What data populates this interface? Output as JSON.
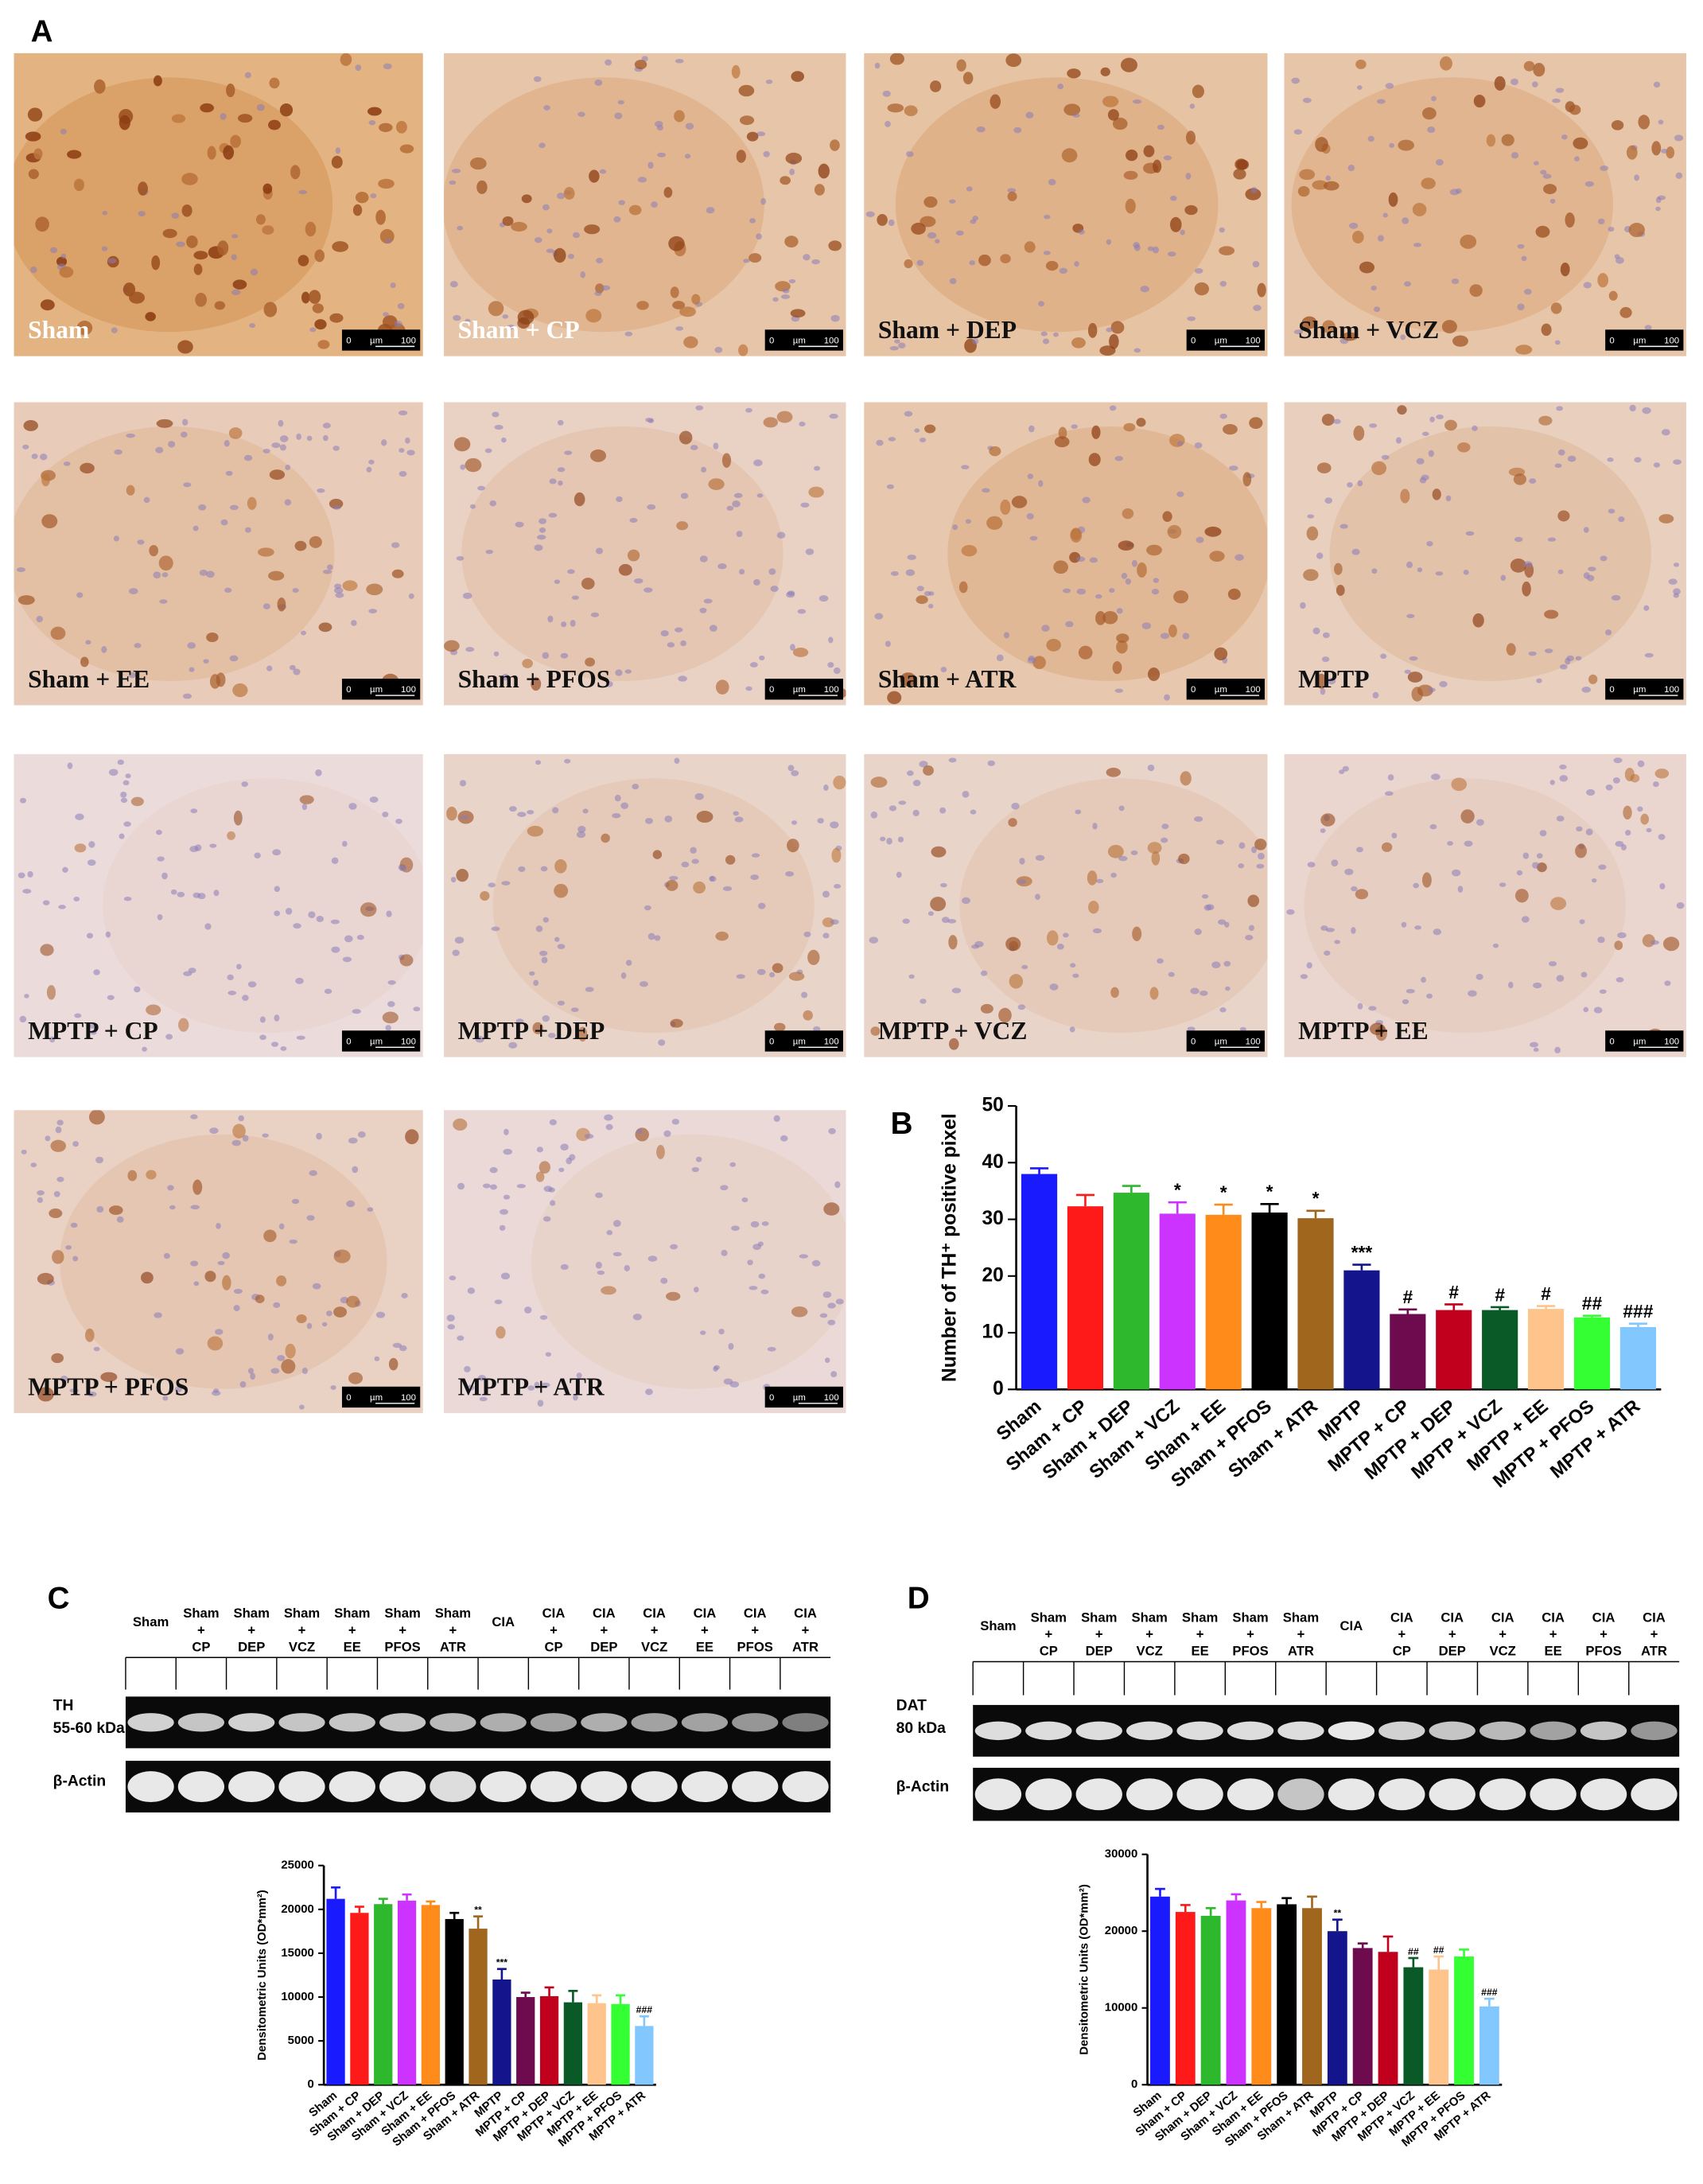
{
  "panel_labels": [
    "A",
    "B",
    "C",
    "D"
  ],
  "micrographs": {
    "scale_bar": {
      "start": "0",
      "unit": "µm",
      "end": "100"
    },
    "labels": [
      "Sham",
      "Sham + CP",
      "Sham + DEP",
      "Sham + VCZ",
      "Sham + EE",
      "Sham + PFOS",
      "Sham + ATR",
      "MPTP",
      "MPTP + CP",
      "MPTP + DEP",
      "MPTP + VCZ",
      "MPTP + EE",
      "MPTP + PFOS",
      "MPTP + ATR"
    ]
  },
  "blots": [
    {
      "lanes": [
        [
          "Sham"
        ],
        [
          "Sham",
          "+",
          "CP"
        ],
        [
          "Sham",
          "+",
          "DEP"
        ],
        [
          "Sham",
          "+",
          "VCZ"
        ],
        [
          "Sham",
          "+",
          "EE"
        ],
        [
          "Sham",
          "+",
          "PFOS"
        ],
        [
          "Sham",
          "+",
          "ATR"
        ],
        [
          "CIA"
        ],
        [
          "CIA",
          "+",
          "CP"
        ],
        [
          "CIA",
          "+",
          "DEP"
        ],
        [
          "CIA",
          "+",
          "VCZ"
        ],
        [
          "CIA",
          "+",
          "EE"
        ],
        [
          "CIA",
          "+",
          "PFOS"
        ],
        [
          "CIA",
          "+",
          "ATR"
        ]
      ],
      "rows": [
        [
          "TH",
          "55-60 kDa"
        ],
        [
          "β-Actin"
        ]
      ]
    },
    {
      "lanes": [
        [
          "Sham"
        ],
        [
          "Sham",
          "+",
          "CP"
        ],
        [
          "Sham",
          "+",
          "DEP"
        ],
        [
          "Sham",
          "+",
          "VCZ"
        ],
        [
          "Sham",
          "+",
          "EE"
        ],
        [
          "Sham",
          "+",
          "PFOS"
        ],
        [
          "Sham",
          "+",
          "ATR"
        ],
        [
          "CIA"
        ],
        [
          "CIA",
          "+",
          "CP"
        ],
        [
          "CIA",
          "+",
          "DEP"
        ],
        [
          "CIA",
          "+",
          "VCZ"
        ],
        [
          "CIA",
          "+",
          "EE"
        ],
        [
          "CIA",
          "+",
          "PFOS"
        ],
        [
          "CIA",
          "+",
          "ATR"
        ]
      ],
      "rows": [
        [
          "DAT",
          "80 kDa"
        ],
        [
          "β-Actin"
        ]
      ]
    }
  ],
  "chart_data": [
    {
      "type": "bar",
      "ylabel": "Number of TH⁺ positive pixel",
      "categories": [
        "Sham",
        "Sham + CP",
        "Sham + DEP",
        "Sham + VCZ",
        "Sham + EE",
        "Sham + PFOS",
        "Sham + ATR",
        "MPTP",
        "MPTP + CP",
        "MPTP + DEP",
        "MPTP + VCZ",
        "MPTP + EE",
        "MPTP + PFOS",
        "MPTP + ATR"
      ],
      "values": [
        38,
        32.3,
        34.7,
        31,
        30.8,
        31.2,
        30.2,
        21,
        13.3,
        14,
        14,
        14.2,
        12.7,
        11
      ],
      "errors": [
        1,
        2,
        1.2,
        2,
        1.8,
        1.5,
        1.3,
        1,
        0.8,
        1,
        0.5,
        0.5,
        0.3,
        0.6
      ],
      "annotations": [
        null,
        null,
        null,
        "*",
        "*",
        "*",
        "*",
        "***",
        "#",
        "#",
        "#",
        "#",
        "##",
        "###"
      ],
      "colors": [
        "#1a1aff",
        "#ff1a1a",
        "#2db82d",
        "#cc33ff",
        "#ff8c1a",
        "#000000",
        "#a0661e",
        "#14148c",
        "#6e0a4e",
        "#c0001c",
        "#0a5a28",
        "#ffc38c",
        "#33ff33",
        "#82c8ff"
      ],
      "ylim": [
        0,
        50
      ],
      "yticks": [
        0,
        10,
        20,
        30,
        40,
        50
      ]
    },
    {
      "type": "bar",
      "ylabel": "Densitometric Units (OD*mm²)",
      "categories": [
        "Sham",
        "Sham + CP",
        "Sham + DEP",
        "Sham + VCZ",
        "Sham + EE",
        "Sham + PFOS",
        "Sham + ATR",
        "MPTP",
        "MPTP + CP",
        "MPTP + DEP",
        "MPTP + VCZ",
        "MPTP + EE",
        "MPTP + PFOS",
        "MPTP + ATR"
      ],
      "values": [
        21200,
        19600,
        20600,
        21000,
        20500,
        18900,
        17800,
        12000,
        10000,
        10100,
        9400,
        9300,
        9200,
        6700
      ],
      "errors": [
        1300,
        700,
        600,
        700,
        400,
        700,
        1400,
        1200,
        500,
        1000,
        1300,
        900,
        1000,
        1100
      ],
      "annotations": [
        null,
        null,
        null,
        null,
        null,
        null,
        "**",
        "***",
        null,
        null,
        null,
        null,
        null,
        "###"
      ],
      "colors": [
        "#1a1aff",
        "#ff1a1a",
        "#2db82d",
        "#cc33ff",
        "#ff8c1a",
        "#000000",
        "#a0661e",
        "#14148c",
        "#6e0a4e",
        "#c0001c",
        "#0a5a28",
        "#ffc38c",
        "#33ff33",
        "#82c8ff"
      ],
      "ylim": [
        0,
        25000
      ],
      "yticks": [
        0,
        5000,
        10000,
        15000,
        20000,
        25000
      ]
    },
    {
      "type": "bar",
      "ylabel": "Densitometric Units (OD*mm²)",
      "categories": [
        "Sham",
        "Sham + CP",
        "Sham + DEP",
        "Sham + VCZ",
        "Sham + EE",
        "Sham + PFOS",
        "Sham + ATR",
        "MPTP",
        "MPTP + CP",
        "MPTP + DEP",
        "MPTP + VCZ",
        "MPTP + EE",
        "MPTP + PFOS",
        "MPTP + ATR"
      ],
      "values": [
        24500,
        22500,
        22000,
        24000,
        23000,
        23500,
        23000,
        20000,
        17800,
        17300,
        15300,
        15000,
        16700,
        10200
      ],
      "errors": [
        1000,
        900,
        1000,
        800,
        800,
        800,
        1500,
        1500,
        600,
        2000,
        1200,
        1700,
        900,
        1000
      ],
      "annotations": [
        null,
        null,
        null,
        null,
        null,
        null,
        null,
        "**",
        null,
        null,
        "##",
        "##",
        null,
        "###"
      ],
      "colors": [
        "#1a1aff",
        "#ff1a1a",
        "#2db82d",
        "#cc33ff",
        "#ff8c1a",
        "#000000",
        "#a0661e",
        "#14148c",
        "#6e0a4e",
        "#c0001c",
        "#0a5a28",
        "#ffc38c",
        "#33ff33",
        "#82c8ff"
      ],
      "ylim": [
        0,
        30000
      ],
      "yticks": [
        0,
        10000,
        20000,
        30000
      ]
    }
  ]
}
